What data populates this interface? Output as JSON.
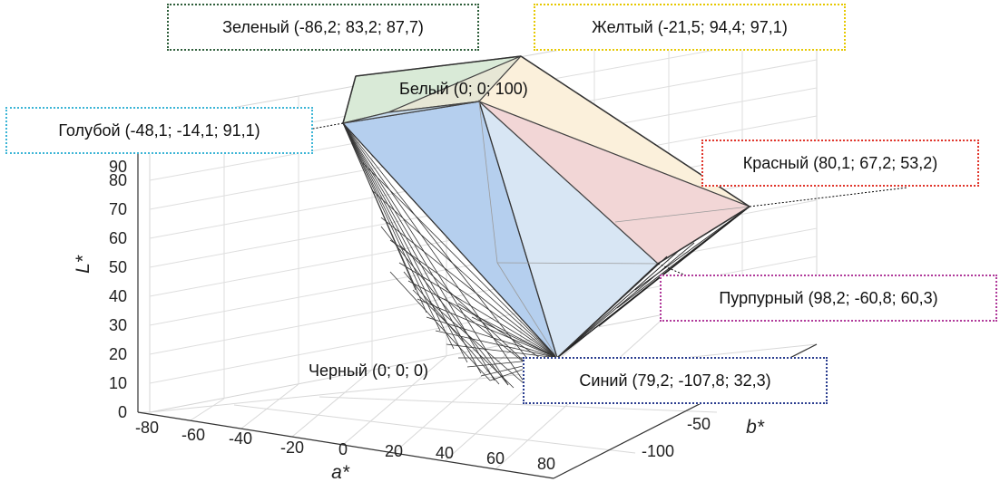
{
  "chart_data": {
    "type": "3d-gamut",
    "title": "",
    "xlabel": "a*",
    "ylabel": "b*",
    "zlabel": "L*",
    "x_ticks": [
      "-80",
      "-60",
      "-40",
      "-20",
      "0",
      "20",
      "40",
      "60",
      "80"
    ],
    "y_ticks": [
      "-50",
      "-100"
    ],
    "z_ticks": [
      "0",
      "10",
      "20",
      "30",
      "40",
      "50",
      "60",
      "70",
      "80",
      "90"
    ],
    "points": [
      {
        "id": "green",
        "label": "Зеленый (-86,2; 83,2; 87,7)",
        "a": -86.2,
        "b": 83.2,
        "L": 87.7,
        "color": "#2e5e3a"
      },
      {
        "id": "yellow",
        "label": "Желтый (-21,5; 94,4; 97,1)",
        "a": -21.5,
        "b": 94.4,
        "L": 97.1,
        "color": "#e6c800"
      },
      {
        "id": "white",
        "label": "Белый (0; 0; 100)",
        "a": 0,
        "b": 0,
        "L": 100,
        "color": "#000000"
      },
      {
        "id": "cyan",
        "label": "Голубой (-48,1; -14,1; 91,1)",
        "a": -48.1,
        "b": -14.1,
        "L": 91.1,
        "color": "#3cb5d6"
      },
      {
        "id": "red",
        "label": "Красный (80,1; 67,2; 53,2)",
        "a": 80.1,
        "b": 67.2,
        "L": 53.2,
        "color": "#e0352b"
      },
      {
        "id": "magenta",
        "label": "Пурпурный (98,2; -60,8; 60,3)",
        "a": 98.2,
        "b": -60.8,
        "L": 60.3,
        "color": "#b03a9a"
      },
      {
        "id": "black",
        "label": "Черный (0; 0; 0)",
        "a": 0,
        "b": 0,
        "L": 0,
        "color": "#000000"
      },
      {
        "id": "blue",
        "label": "Синий (79,2; -107,8; 32,3)",
        "a": 79.2,
        "b": -107.8,
        "L": 32.3,
        "color": "#2a3d8f"
      }
    ]
  }
}
